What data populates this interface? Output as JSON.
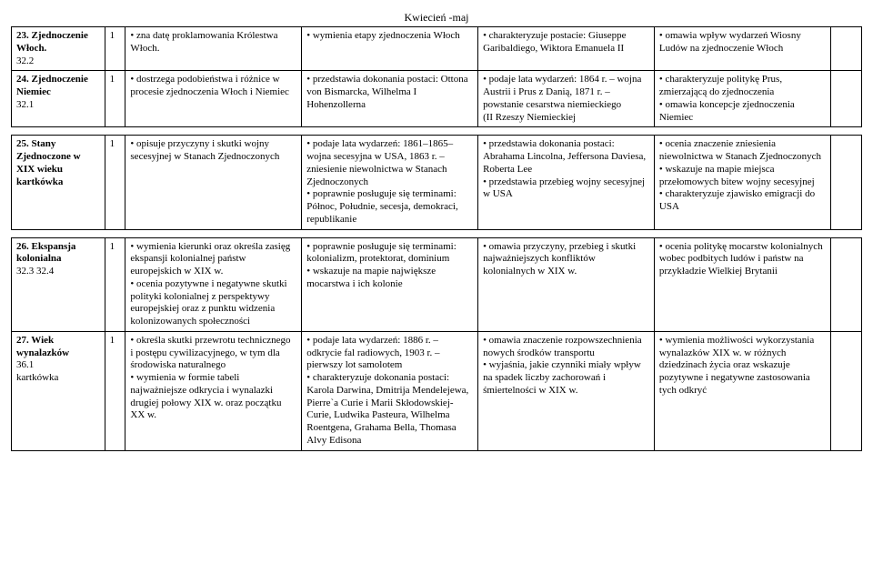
{
  "header": "Kwiecień -maj",
  "rows": [
    {
      "c0": "<span class='bold'>23. Zjednoczenie Włoch.</span><br>32.2",
      "c1": "1",
      "c2": "• zna datę proklamowania Królestwa Włoch.",
      "c3": "• wymienia etapy zjednoczenia Włoch",
      "c4": "• charakteryzuje postacie: Giuseppe Garibaldiego, Wiktora Emanuela II",
      "c5": "• omawia wpływ wydarzeń Wiosny Ludów na zjednoczenie Włoch",
      "c6": ""
    },
    {
      "c0": "<span class='bold'>24. Zjednoczenie Niemiec</span><br>32.1",
      "c1": "1",
      "c2": "• dostrzega podobieństwa i różnice w procesie zjednoczenia Włoch i Niemiec",
      "c3": "• przedstawia dokonania postaci: Ottona von Bismarcka, Wilhelma I Hohenzollerna",
      "c4": "• podaje lata wydarzeń: 1864 r. – wojna Austrii i Prus z Danią, 1871 r. – powstanie cesarstwa niemieckiego<br>(II Rzeszy Niemieckiej",
      "c5": "• charakteryzuje politykę Prus, zmierzającą do zjednoczenia<br>• omawia koncepcje zjednoczenia Niemiec",
      "c6": ""
    },
    {
      "c0": "<span class='bold'>25. Stany Zjednoczone w XIX wieku kartkówka</span>",
      "c1": "1",
      "c2": "• opisuje przyczyny i skutki wojny secesyjnej w Stanach Zjednoczonych",
      "c3": "• podaje lata wydarzeń: 1861–1865– wojna secesyjna w USA, 1863 r. – zniesienie niewolnictwa w Stanach Zjednoczonych<br>• poprawnie posługuje się terminami: Północ, Południe, secesja, demokraci, republikanie",
      "c4": "• przedstawia dokonania postaci: Abrahama Lincolna, Jeffersona Daviesa, Roberta Lee<br>• przedstawia przebieg wojny secesyjnej w USA",
      "c5": "• ocenia znaczenie zniesienia niewolnictwa w Stanach Zjednoczonych • wskazuje na mapie miejsca przełomowych bitew wojny secesyjnej<br>• charakteryzuje zjawisko emigracji do USA",
      "c6": ""
    },
    {
      "c0": "<span class='bold'>26. Ekspansja kolonialna</span><br>32.3 32.4",
      "c1": "1",
      "c2": "• wymienia kierunki oraz określa zasięg ekspansji kolonialnej państw europejskich w XIX w.<br>• ocenia pozytywne i negatywne skutki polityki kolonialnej z perspektywy europejskiej oraz z punktu widzenia kolonizowanych społeczności",
      "c3": "• poprawnie posługuje się terminami: kolonializm, protektorat, dominium<br>• wskazuje na mapie największe mocarstwa i ich kolonie",
      "c4": "• omawia przyczyny, przebieg i skutki najważniejszych konfliktów kolonialnych w XIX w.",
      "c5": "• ocenia politykę mocarstw kolonialnych wobec podbitych ludów i państw na przykładzie Wielkiej Brytanii",
      "c6": ""
    },
    {
      "c0": "<span class='bold'>27. Wiek wynalazków</span><br>36.1<br>kartkówka",
      "c1": "1",
      "c2": "• określa skutki przewrotu technicznego<br>i postępu cywilizacyjnego, w tym dla środowiska naturalnego<br>• wymienia w formie tabeli najważniejsze odkrycia i wynalazki drugiej połowy XIX w. oraz początku XX w.",
      "c3": "• podaje lata wydarzeń: 1886 r. – odkrycie fal radiowych, 1903 r. – pierwszy lot samolotem<br>• charakteryzuje dokonania postaci: Karola Darwina, Dmitrija Mendelejewa, Pierre`a Curie i Marii Skłodowskiej-Curie, Ludwika Pasteura, Wilhelma Roentgena, Grahama Bella, Thomasa Alvy Edisona",
      "c4": "• omawia znaczenie rozpowszechnienia nowych środków transportu<br>• wyjaśnia, jakie czynniki miały wpływ na spadek liczby zachorowań i śmiertelności w XIX w.",
      "c5": "• wymienia możliwości wykorzystania wynalazków XIX w. w różnych dziedzinach życia oraz wskazuje pozytywne i negatywne zastosowania tych odkryć",
      "c6": ""
    }
  ]
}
